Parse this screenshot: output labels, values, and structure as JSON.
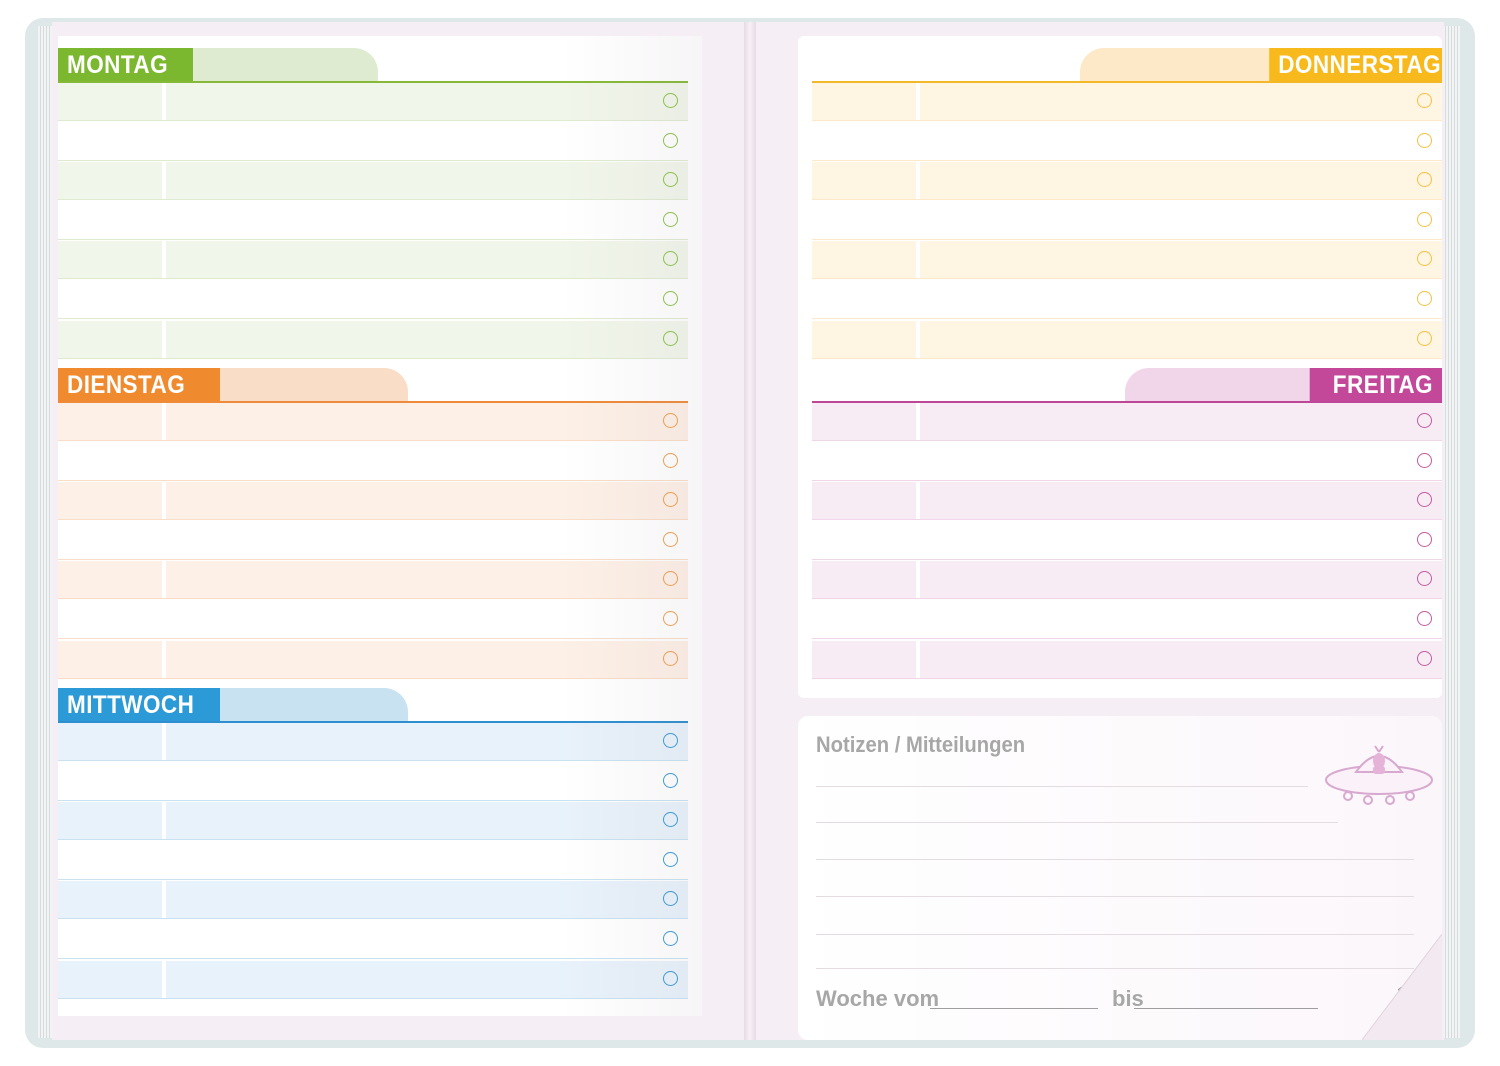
{
  "planner": {
    "left_days": [
      {
        "name": "MONTAG",
        "color": "#7cb82f",
        "tint": "#dfebd1",
        "row_tint": "#f1f6ea",
        "rule": "#86b937",
        "check": "#8bc34a"
      },
      {
        "name": "DIENSTAG",
        "color": "#f08a2e",
        "tint": "#f9ddc7",
        "row_tint": "#fdf0e6",
        "rule": "#ee8a3a",
        "check": "#f0a050"
      },
      {
        "name": "MITTWOCH",
        "color": "#2d9ad8",
        "tint": "#c8e2f2",
        "row_tint": "#e8f2fa",
        "rule": "#2d8fd0",
        "check": "#3a9bd8"
      }
    ],
    "right_days": [
      {
        "name": "DONNERSTAG",
        "color": "#f8b91c",
        "tint": "#fde9c8",
        "row_tint": "#fef6e3",
        "rule": "#f3b82a",
        "check": "#f5c040"
      },
      {
        "name": "FREITAG",
        "color": "#c3489a",
        "tint": "#f0d6e8",
        "row_tint": "#f8ecf4",
        "rule": "#bd4796",
        "check": "#c45aa0"
      }
    ],
    "notes": {
      "title": "Notizen / Mitteilungen",
      "week_from_label": "Woche vom",
      "until_label": "bis",
      "page_number": "17"
    }
  }
}
